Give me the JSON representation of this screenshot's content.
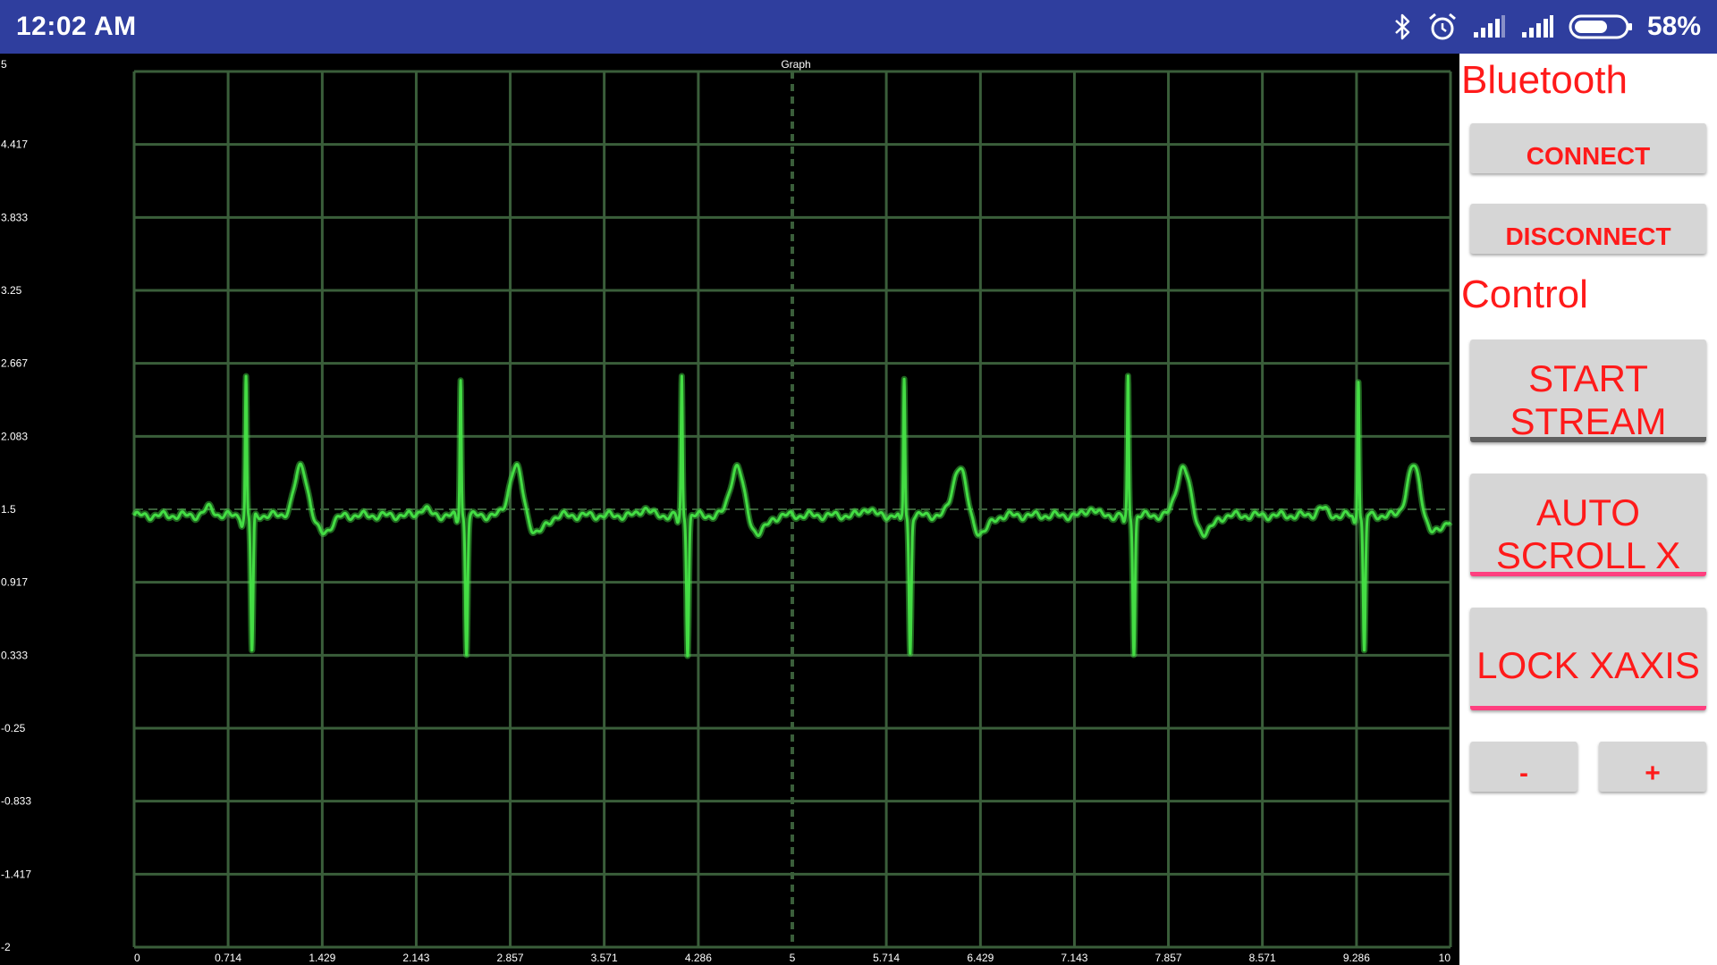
{
  "status_bar": {
    "time": "12:02 AM",
    "battery": "58%",
    "icons": [
      "bluetooth-icon",
      "alarm-icon",
      "signal-icon",
      "signal-icon",
      "battery-icon"
    ]
  },
  "graph": {
    "title": "Graph",
    "colors": {
      "background": "#000000",
      "grid": "#3a5e3a",
      "trace": "#44dd44",
      "axis_text": "#ffffff"
    }
  },
  "chart_data": {
    "type": "line",
    "title": "Graph",
    "xlabel": "",
    "ylabel": "",
    "xlim": [
      0,
      10
    ],
    "ylim": [
      -2,
      5
    ],
    "x_ticks": [
      "0",
      "0.714",
      "1.429",
      "2.143",
      "2.857",
      "3.571",
      "4.286",
      "5",
      "5.714",
      "6.429",
      "7.143",
      "7.857",
      "8.571",
      "9.286",
      "10"
    ],
    "y_ticks": [
      "5",
      "4.417",
      "3.833",
      "3.25",
      "2.667",
      "2.083",
      "1.5",
      "0.917",
      "0.333",
      "-0.25",
      "-0.833",
      "-1.417",
      "-2"
    ],
    "grid": true,
    "series": [
      {
        "beat_times": [
          0.85,
          2.48,
          4.16,
          5.85,
          7.55,
          9.3
        ],
        "baseline": 1.5,
        "r_peak": 2.6,
        "s_trough": 0.4,
        "t_wave_peak": 1.9
      }
    ]
  },
  "panel": {
    "bluetooth_title": "Bluetooth",
    "connect_label": "CONNECT",
    "disconnect_label": "DISCONNECT",
    "control_title": "Control",
    "start_stream_label": "START STREAM",
    "auto_scroll_label": "AUTO SCROLL X",
    "lock_xaxis_label": "LOCK XAXIS",
    "minus_label": "-",
    "plus_label": "+",
    "colors": {
      "accent": "#ff1a1a",
      "button_bg": "#d6d6d6",
      "pink_bar": "#ff3f7f"
    }
  }
}
